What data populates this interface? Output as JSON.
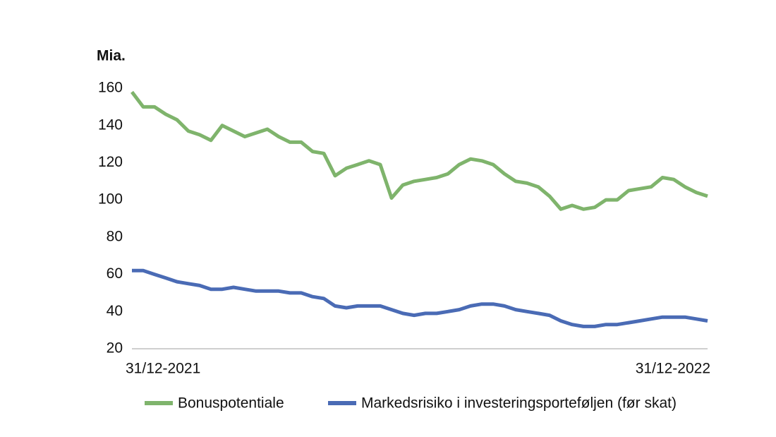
{
  "chart_data": {
    "type": "line",
    "y_label": "Mia.",
    "categories": [
      "31/12-2021",
      null,
      null,
      null,
      null,
      null,
      null,
      null,
      null,
      null,
      null,
      null,
      null,
      null,
      null,
      null,
      null,
      null,
      null,
      null,
      null,
      null,
      null,
      null,
      null,
      null,
      null,
      null,
      null,
      null,
      null,
      null,
      null,
      null,
      null,
      null,
      null,
      null,
      null,
      null,
      null,
      null,
      null,
      null,
      null,
      null,
      null,
      null,
      null,
      null,
      null,
      "31/12-2022"
    ],
    "series": [
      {
        "name": "Bonuspotentiale",
        "color": "#7fb46c",
        "values": [
          158,
          150,
          150,
          146,
          143,
          137,
          135,
          132,
          140,
          137,
          134,
          136,
          138,
          134,
          131,
          131,
          126,
          125,
          113,
          117,
          119,
          121,
          119,
          101,
          108,
          110,
          111,
          112,
          114,
          119,
          122,
          121,
          119,
          114,
          110,
          109,
          107,
          102,
          95,
          97,
          95,
          96,
          100,
          100,
          105,
          106,
          107,
          112,
          111,
          107,
          104,
          102
        ]
      },
      {
        "name": "Markedsrisiko i investeringsporteføljen (før skat)",
        "color": "#4a6bb5",
        "values": [
          62,
          62,
          60,
          58,
          56,
          55,
          54,
          52,
          52,
          53,
          52,
          51,
          51,
          51,
          50,
          50,
          48,
          47,
          43,
          42,
          43,
          43,
          43,
          41,
          39,
          38,
          39,
          39,
          40,
          41,
          43,
          44,
          44,
          43,
          41,
          40,
          39,
          38,
          35,
          33,
          32,
          32,
          33,
          33,
          34,
          35,
          36,
          37,
          37,
          37,
          36,
          35
        ]
      }
    ],
    "ylim": [
      20,
      160
    ],
    "yticks": [
      20,
      40,
      60,
      80,
      100,
      120,
      140,
      160
    ],
    "grid": false,
    "legend": "bottom"
  }
}
